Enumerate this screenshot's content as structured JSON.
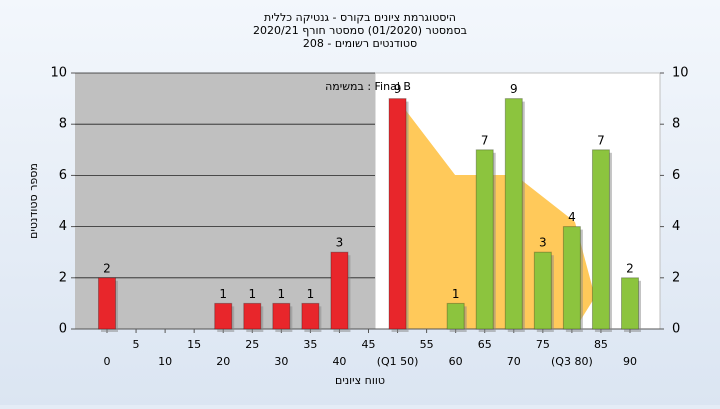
{
  "chart_data": {
    "type": "bar",
    "title_lines": [
      "היסטוגרמת ציונים בקורס - גנטיקה כללית",
      "בסמסטר  (01/2020)  סמסטר חורף 2020/21",
      "סטודנטים רשומים - 208"
    ],
    "annotation": "במשימה : Final B",
    "y_label": "מספר סטודנטים",
    "x_label": "טווח ציונים",
    "categories": [
      "0",
      "5",
      "10",
      "15",
      "20",
      "25",
      "30",
      "35",
      "40",
      "45",
      "(Q1 50)",
      "55",
      "60",
      "65",
      "70",
      "75",
      "(Q3 80)",
      "85",
      "90"
    ],
    "values": [
      2,
      null,
      null,
      null,
      1,
      1,
      1,
      1,
      3,
      null,
      9,
      null,
      1,
      7,
      9,
      3,
      4,
      7,
      2
    ],
    "colors": [
      "#e8262b",
      null,
      null,
      null,
      "#e8262b",
      "#e8262b",
      "#e8262b",
      "#e8262b",
      "#e8262b",
      null,
      "#e8262b",
      null,
      "#8cc43e",
      "#8cc43e",
      "#8cc43e",
      "#8cc43e",
      "#8cc43e",
      "#8cc43e",
      "#8cc43e"
    ],
    "ylim": [
      0,
      10
    ],
    "yticks": [
      0,
      2,
      4,
      6,
      8,
      10
    ],
    "y2lim": [
      0,
      10
    ],
    "y2ticks": [
      0,
      2,
      4,
      6,
      8,
      10
    ],
    "grid": true
  }
}
